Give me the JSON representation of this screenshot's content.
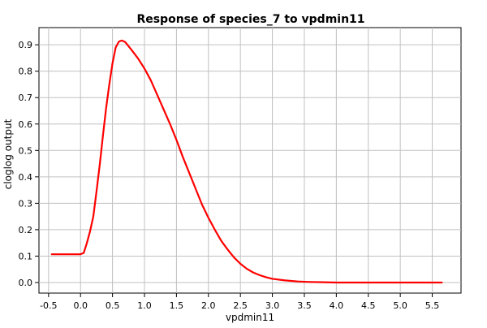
{
  "chart_data": {
    "type": "line",
    "title": "Response of species_7 to vpdmin11",
    "xlabel": "vpdmin11",
    "ylabel": "cloglog output",
    "xlim": [
      -0.65,
      5.95
    ],
    "ylim": [
      -0.04,
      0.965
    ],
    "x_ticks": [
      -0.5,
      0.0,
      0.5,
      1.0,
      1.5,
      2.0,
      2.5,
      3.0,
      3.5,
      4.0,
      4.5,
      5.0,
      5.5
    ],
    "x_tick_labels": [
      "-0.5",
      "0.0",
      "0.5",
      "1.0",
      "1.5",
      "2.0",
      "2.5",
      "3.0",
      "3.5",
      "4.0",
      "4.5",
      "5.0",
      "5.5"
    ],
    "y_ticks": [
      0.0,
      0.1,
      0.2,
      0.3,
      0.4,
      0.5,
      0.6,
      0.7,
      0.8,
      0.9
    ],
    "y_tick_labels": [
      "0.0",
      "0.1",
      "0.2",
      "0.3",
      "0.4",
      "0.5",
      "0.6",
      "0.7",
      "0.8",
      "0.9"
    ],
    "grid": true,
    "series": [
      {
        "color": "#ff0000",
        "x": [
          -0.45,
          -0.3,
          -0.15,
          0.0,
          0.05,
          0.1,
          0.15,
          0.2,
          0.25,
          0.3,
          0.35,
          0.4,
          0.45,
          0.5,
          0.55,
          0.6,
          0.63,
          0.65,
          0.7,
          0.75,
          0.8,
          0.9,
          1.0,
          1.1,
          1.2,
          1.3,
          1.4,
          1.5,
          1.6,
          1.7,
          1.8,
          1.9,
          2.0,
          2.1,
          2.2,
          2.3,
          2.4,
          2.5,
          2.6,
          2.7,
          2.8,
          2.9,
          3.0,
          3.2,
          3.4,
          3.6,
          3.8,
          4.0,
          4.5,
          5.0,
          5.5,
          5.65
        ],
        "y": [
          0.107,
          0.107,
          0.107,
          0.107,
          0.112,
          0.15,
          0.195,
          0.25,
          0.345,
          0.445,
          0.555,
          0.66,
          0.75,
          0.83,
          0.89,
          0.912,
          0.915,
          0.916,
          0.91,
          0.895,
          0.88,
          0.848,
          0.81,
          0.765,
          0.71,
          0.655,
          0.6,
          0.54,
          0.475,
          0.415,
          0.355,
          0.295,
          0.245,
          0.2,
          0.158,
          0.125,
          0.095,
          0.071,
          0.052,
          0.038,
          0.028,
          0.02,
          0.014,
          0.008,
          0.004,
          0.002,
          0.001,
          0.0,
          0.0,
          0.0,
          0.0,
          0.0
        ]
      }
    ]
  }
}
